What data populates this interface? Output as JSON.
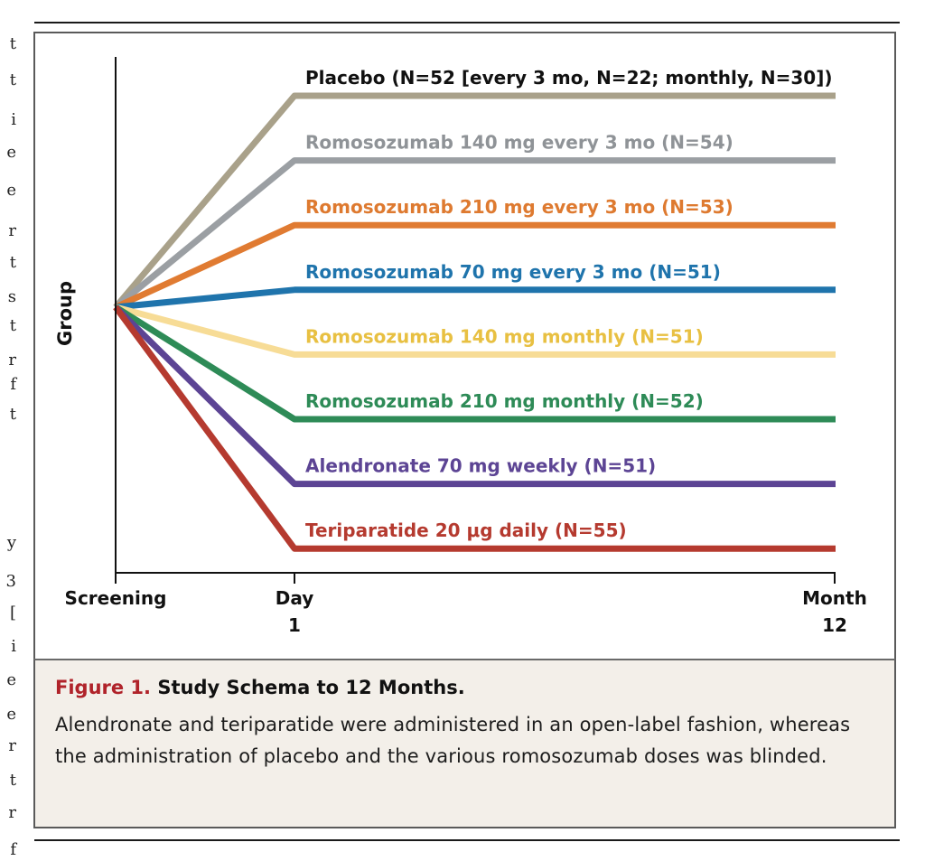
{
  "figure": {
    "number": "Figure 1.",
    "title": "Study Schema to 12 Months.",
    "caption": "Alendronate and teriparatide were administered in an open-label fashion, whereas the administration of placebo and the various romosozumab doses was blinded."
  },
  "diagram": {
    "y_axis_label": "Group",
    "x_ticks": [
      {
        "line1": "Screening",
        "line2": ""
      },
      {
        "line1": "Day",
        "line2": "1"
      },
      {
        "line1": "Month",
        "line2": "12"
      }
    ],
    "groups": [
      {
        "label": "Placebo (N=52 [every 3 mo, N=22; monthly, N=30])",
        "color": "#a9a18a",
        "label_color": "#111111"
      },
      {
        "label": "Romosozumab 140 mg every 3 mo (N=54)",
        "color": "#9b9fa3",
        "label_color": "#8f9397"
      },
      {
        "label": "Romosozumab 210 mg every 3 mo (N=53)",
        "color": "#e07b32",
        "label_color": "#de7a30"
      },
      {
        "label": "Romosozumab 70 mg every 3 mo (N=51)",
        "color": "#1f74ac",
        "label_color": "#1f74ac"
      },
      {
        "label": "Romosozumab 140 mg monthly (N=51)",
        "color": "#f7dc96",
        "label_color": "#e8c042"
      },
      {
        "label": "Romosozumab 210 mg monthly (N=52)",
        "color": "#2e8b57",
        "label_color": "#2e8b57"
      },
      {
        "label": "Alendronate 70 mg weekly (N=51)",
        "color": "#5c4494",
        "label_color": "#5c4494"
      },
      {
        "label": "Teriparatide 20 μg daily (N=55)",
        "color": "#b53a2f",
        "label_color": "#b53a2f"
      }
    ]
  },
  "gutter_glyphs": [
    "t",
    "t",
    "i",
    "e",
    "e",
    "r",
    "t",
    "s",
    "t",
    "r",
    "f",
    "t",
    "y",
    "3",
    "[",
    "i",
    "e",
    "e",
    "r",
    "t",
    "r",
    "f"
  ]
}
